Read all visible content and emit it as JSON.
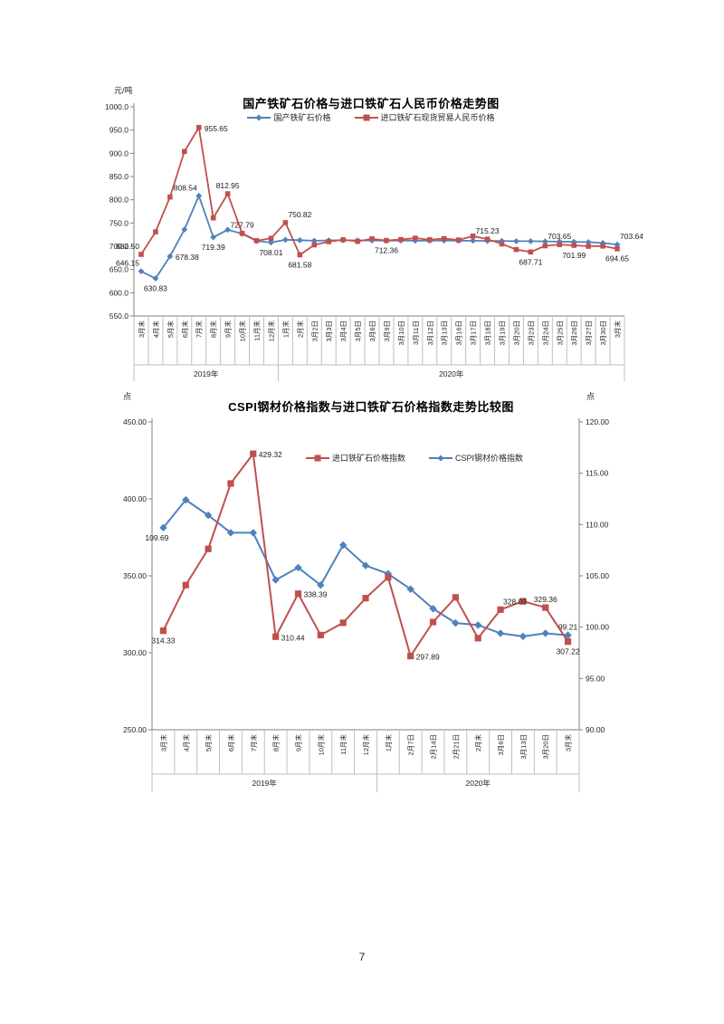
{
  "page": {
    "number": "7"
  },
  "chart_data": [
    {
      "type": "line",
      "title": "国产铁矿石价格与进口铁矿石人民币价格走势图",
      "y_unit": "元/吨",
      "grid": false,
      "legend_position": "top-center",
      "y_axis_left": {
        "min": 550,
        "max": 1000,
        "tick_labels": [
          "1000.0",
          "950.0",
          "900.0",
          "850.0",
          "800.0",
          "750.0",
          "700.0",
          "650.0",
          "600.0",
          "550.0"
        ]
      },
      "categories": [
        "3月末",
        "4月末",
        "5月末",
        "6月末",
        "7月末",
        "8月末",
        "9月末",
        "10月末",
        "11月末",
        "12月末",
        "1月末",
        "2月末",
        "3月2日",
        "3月3日",
        "3月4日",
        "3月5日",
        "3月6日",
        "3月9日",
        "3月10日",
        "3月11日",
        "3月12日",
        "3月13日",
        "3月16日",
        "3月17日",
        "3月18日",
        "3月19日",
        "3月20日",
        "3月23日",
        "3月24日",
        "3月25日",
        "3月26日",
        "3月27日",
        "3月30日",
        "3月末"
      ],
      "category_groups": [
        {
          "label": "2019年",
          "from": 0,
          "to": 9
        },
        {
          "label": "2020年",
          "from": 10,
          "to": 33
        }
      ],
      "series": [
        {
          "name": "国产铁矿石价格",
          "color": "#4F81BD",
          "marker": "diamond",
          "axis": "left",
          "draw": 1,
          "values": [
            646.15,
            630.83,
            678.38,
            736.0,
            808.54,
            719.39,
            735.5,
            727.0,
            711.5,
            708.01,
            714.0,
            713.0,
            712.0,
            712.5,
            713.0,
            712.5,
            712.5,
            712.0,
            712.5,
            712.0,
            712.0,
            712.5,
            712.0,
            712.0,
            711.5,
            711.5,
            711.0,
            711.0,
            710.5,
            710.0,
            709.5,
            709.0,
            707.0,
            703.64
          ],
          "point_labels": [
            {
              "i": 0,
              "text": "646.15",
              "pos": "above-left"
            },
            {
              "i": 1,
              "text": "630.83",
              "pos": "below"
            },
            {
              "i": 2,
              "text": "678.38",
              "pos": "right"
            },
            {
              "i": 4,
              "text": "808.54",
              "pos": "above-left"
            },
            {
              "i": 5,
              "text": "719.39",
              "pos": "below"
            },
            {
              "i": 9,
              "text": "708.01",
              "pos": "below"
            },
            {
              "i": 33,
              "text": "703.64",
              "pos": "above-right"
            }
          ]
        },
        {
          "name": "进口铁矿石现货贸易人民币价格",
          "color": "#C0504D",
          "marker": "square",
          "axis": "left",
          "draw": 2,
          "values": [
            682.5,
            731.0,
            806.0,
            904.0,
            955.65,
            761.0,
            812.95,
            727.79,
            712.0,
            717.0,
            750.82,
            681.58,
            703.0,
            710.0,
            714.0,
            710.5,
            716.0,
            712.36,
            714.5,
            717.5,
            714.0,
            716.5,
            713.5,
            722.0,
            715.23,
            705.0,
            693.0,
            687.71,
            701.0,
            703.65,
            701.99,
            700.0,
            700.5,
            694.65
          ],
          "point_labels": [
            {
              "i": 0,
              "text": "682.50",
              "pos": "above-left"
            },
            {
              "i": 4,
              "text": "955.65",
              "pos": "right"
            },
            {
              "i": 6,
              "text": "812.95",
              "pos": "above"
            },
            {
              "i": 7,
              "text": "727.79",
              "pos": "above"
            },
            {
              "i": 10,
              "text": "750.82",
              "pos": "above-right"
            },
            {
              "i": 11,
              "text": "681.58",
              "pos": "below"
            },
            {
              "i": 17,
              "text": "712.36",
              "pos": "below"
            },
            {
              "i": 24,
              "text": "715.23",
              "pos": "above"
            },
            {
              "i": 27,
              "text": "687.71",
              "pos": "below"
            },
            {
              "i": 29,
              "text": "703.65",
              "pos": "above"
            },
            {
              "i": 30,
              "text": "701.99",
              "pos": "below"
            },
            {
              "i": 33,
              "text": "694.65",
              "pos": "below"
            }
          ]
        }
      ]
    },
    {
      "type": "line",
      "title": "CSPI钢材价格指数与进口铁矿石价格指数走势比较图",
      "y_unit_left": "点",
      "y_unit_right": "点",
      "grid": false,
      "legend_position": "top-center",
      "y_axis_left": {
        "min": 250,
        "max": 450,
        "tick_labels": [
          "450.00",
          "400.00",
          "350.00",
          "300.00",
          "250.00"
        ]
      },
      "y_axis_right": {
        "min": 90,
        "max": 120,
        "tick_labels": [
          "120.00",
          "115.00",
          "110.00",
          "105.00",
          "100.00",
          "95.00",
          "90.00"
        ]
      },
      "categories": [
        "3月末",
        "4月末",
        "5月末",
        "6月末",
        "7月末",
        "8月末",
        "9月末",
        "10月末",
        "11月末",
        "12月末",
        "1月末",
        "2月7日",
        "2月14日",
        "2月21日",
        "2月末",
        "3月6日",
        "3月13日",
        "3月20日",
        "3月末"
      ],
      "category_groups": [
        {
          "label": "2019年",
          "from": 0,
          "to": 9
        },
        {
          "label": "2020年",
          "from": 10,
          "to": 18
        }
      ],
      "series": [
        {
          "name": "进口铁矿石价格指数",
          "color": "#C0504D",
          "marker": "square",
          "axis": "left",
          "draw": 2,
          "values": [
            314.33,
            344.0,
            367.5,
            410.0,
            429.32,
            310.44,
            338.39,
            311.5,
            319.5,
            335.5,
            349.0,
            297.89,
            320.0,
            336.0,
            309.5,
            328.03,
            333.5,
            329.36,
            307.22
          ],
          "point_labels": [
            {
              "i": 0,
              "text": "314.33",
              "pos": "below"
            },
            {
              "i": 4,
              "text": "429.32",
              "pos": "right"
            },
            {
              "i": 5,
              "text": "310.44",
              "pos": "right"
            },
            {
              "i": 6,
              "text": "338.39",
              "pos": "right"
            },
            {
              "i": 11,
              "text": "297.89",
              "pos": "right"
            },
            {
              "i": 15,
              "text": "328.03",
              "pos": "above-right"
            },
            {
              "i": 17,
              "text": "329.36",
              "pos": "above"
            },
            {
              "i": 18,
              "text": "307.22",
              "pos": "below"
            }
          ]
        },
        {
          "name": "CSPI钢材价格指数",
          "color": "#4F81BD",
          "marker": "diamond",
          "axis": "right",
          "draw": 1,
          "values": [
            109.69,
            112.4,
            110.9,
            109.2,
            109.2,
            104.6,
            105.8,
            104.1,
            108.0,
            106.0,
            105.2,
            103.7,
            101.8,
            100.4,
            100.2,
            99.4,
            99.1,
            99.4,
            99.21
          ],
          "point_labels": [
            {
              "i": 0,
              "text": "109.69",
              "pos": "below-left"
            },
            {
              "i": 18,
              "text": "99.21",
              "pos": "above"
            }
          ]
        }
      ]
    }
  ]
}
